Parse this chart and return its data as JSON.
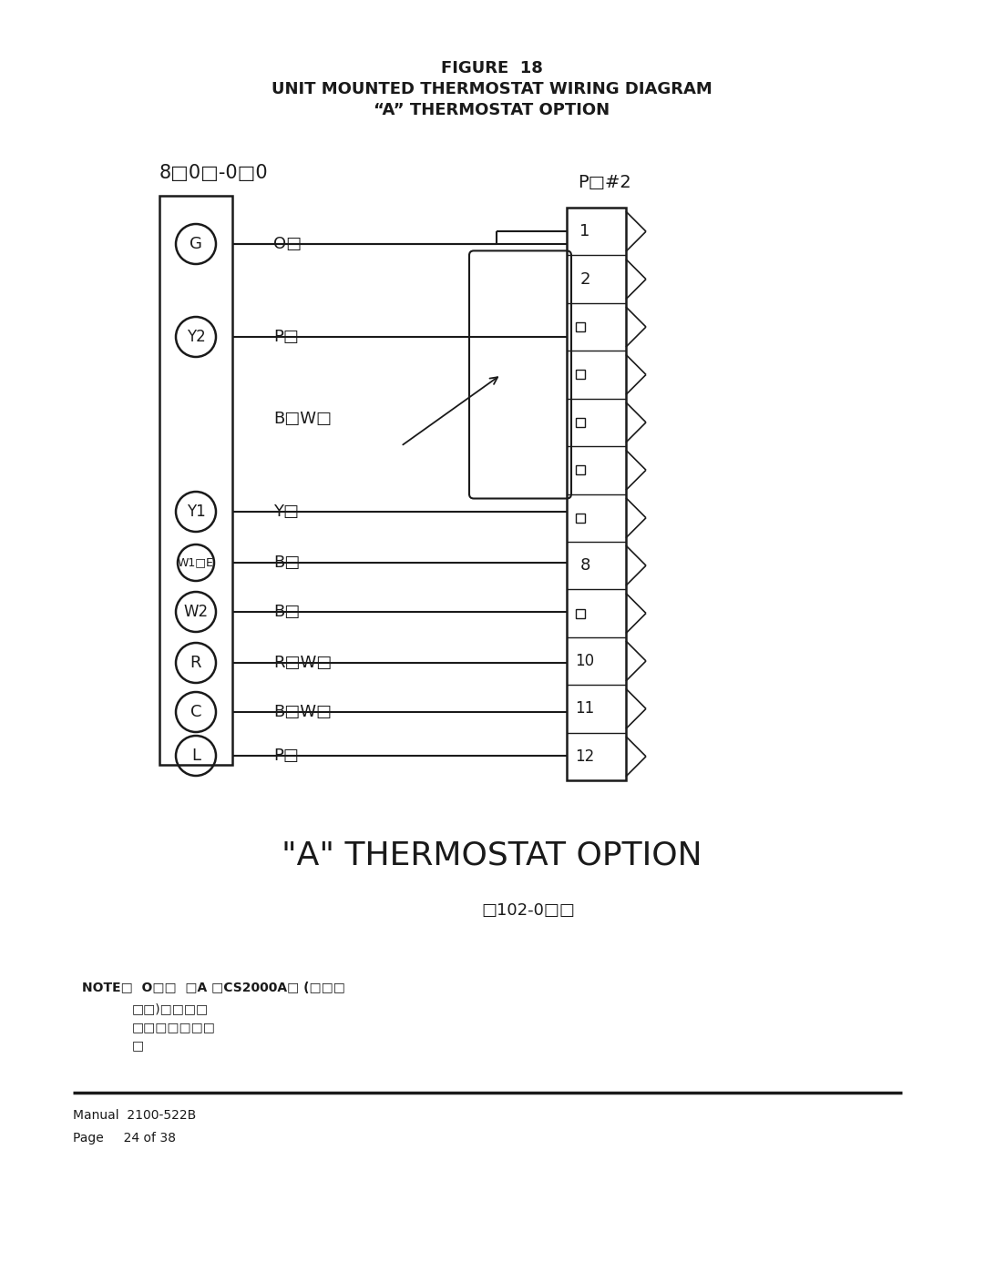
{
  "title_line1": "FIGURE  18",
  "title_line2": "UNIT MOUNTED THERMOSTAT WIRING DIAGRAM",
  "title_line3": "“A” THERMOSTAT OPTION",
  "left_label": "8□0□-0□0",
  "right_label": "P□#2",
  "bottom_title": "\"A\" THERMOSTAT OPTION",
  "bottom_subtitle": "□102-0□□",
  "note_line1": "NOTE□  O□□  □A □CS2000A□ (□□□",
  "note_line2": "□□)□□□□",
  "note_line3": "□□□□□□□",
  "note_line4": "□",
  "manual_text": "Manual  2100-522B",
  "page_text": "Page     24 of 38",
  "bg_color": "#ffffff",
  "fg_color": "#1a1a1a"
}
